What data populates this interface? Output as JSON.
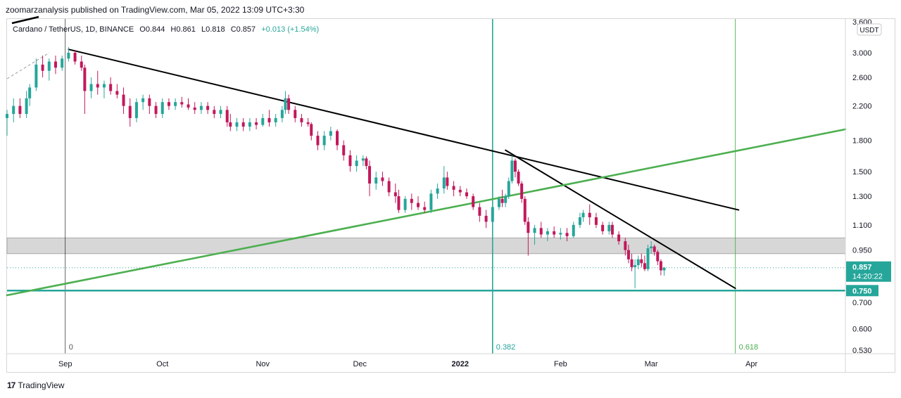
{
  "header": {
    "published_line": "zoomarzanalysis published on TradingView.com, Mar 05, 2022 13:09 UTC+3:30"
  },
  "legend": {
    "symbol": "Cardano / TetherUS, 1D, BINANCE",
    "open": "O0.844",
    "high": "H0.861",
    "low": "L0.818",
    "close": "C0.857",
    "change": "+0.013 (+1.54%)"
  },
  "price_scale": {
    "currency": "USDT",
    "top_label": "3.600",
    "current_price": "0.857",
    "countdown": "14:20:22",
    "level_label": "0.750"
  },
  "footer": {
    "brand": "TradingView",
    "logo": "17"
  },
  "colors": {
    "up": "#26a69a",
    "down": "#c2185b",
    "trendline": "#000000",
    "support_line": "#4caf50",
    "zone": "#d3d3d3",
    "horizontal": "#26a69a",
    "fib_382": "#26a69a",
    "fib_618": "#4caf50"
  },
  "chart_data": {
    "type": "candlestick",
    "symbol": "Cardano / TetherUS",
    "interval": "1D",
    "exchange": "BINANCE",
    "y_scale": "log",
    "ylim": [
      0.51,
      3.6
    ],
    "y_ticks": [
      "3.000",
      "2.600",
      "2.200",
      "1.800",
      "1.500",
      "1.300",
      "1.100",
      "0.950",
      "0.700",
      "0.600",
      "0.530"
    ],
    "x_ticks": [
      "Sep",
      "Oct",
      "Nov",
      "Dec",
      "2022",
      "Feb",
      "Mar",
      "Apr"
    ],
    "x_range": [
      "2021-08-14",
      "2022-04-30"
    ],
    "candles": [
      {
        "date": "2021-08-14",
        "o": 2.05,
        "h": 2.15,
        "l": 1.85,
        "c": 2.1
      },
      {
        "date": "2021-08-16",
        "o": 2.1,
        "h": 2.3,
        "l": 2.0,
        "c": 2.2
      },
      {
        "date": "2021-08-18",
        "o": 2.2,
        "h": 2.3,
        "l": 2.05,
        "c": 2.1
      },
      {
        "date": "2021-08-20",
        "o": 2.1,
        "h": 2.4,
        "l": 2.05,
        "c": 2.3
      },
      {
        "date": "2021-08-21",
        "o": 2.3,
        "h": 2.5,
        "l": 2.2,
        "c": 2.45
      },
      {
        "date": "2021-08-23",
        "o": 2.45,
        "h": 2.9,
        "l": 2.4,
        "c": 2.8
      },
      {
        "date": "2021-08-25",
        "o": 2.8,
        "h": 2.95,
        "l": 2.6,
        "c": 2.7
      },
      {
        "date": "2021-08-27",
        "o": 2.7,
        "h": 2.9,
        "l": 2.55,
        "c": 2.85
      },
      {
        "date": "2021-08-29",
        "o": 2.85,
        "h": 2.95,
        "l": 2.65,
        "c": 2.75
      },
      {
        "date": "2021-08-31",
        "o": 2.75,
        "h": 2.95,
        "l": 2.7,
        "c": 2.9
      },
      {
        "date": "2021-09-02",
        "o": 2.9,
        "h": 3.1,
        "l": 2.85,
        "c": 3.0
      },
      {
        "date": "2021-09-04",
        "o": 3.0,
        "h": 3.05,
        "l": 2.8,
        "c": 2.85
      },
      {
        "date": "2021-09-06",
        "o": 2.85,
        "h": 2.95,
        "l": 2.7,
        "c": 2.75
      },
      {
        "date": "2021-09-07",
        "o": 2.75,
        "h": 2.8,
        "l": 2.1,
        "c": 2.4
      },
      {
        "date": "2021-09-09",
        "o": 2.4,
        "h": 2.6,
        "l": 2.3,
        "c": 2.5
      },
      {
        "date": "2021-09-11",
        "o": 2.5,
        "h": 2.7,
        "l": 2.35,
        "c": 2.45
      },
      {
        "date": "2021-09-13",
        "o": 2.45,
        "h": 2.55,
        "l": 2.3,
        "c": 2.5
      },
      {
        "date": "2021-09-15",
        "o": 2.5,
        "h": 2.6,
        "l": 2.35,
        "c": 2.4
      },
      {
        "date": "2021-09-17",
        "o": 2.4,
        "h": 2.5,
        "l": 2.3,
        "c": 2.35
      },
      {
        "date": "2021-09-19",
        "o": 2.35,
        "h": 2.45,
        "l": 2.1,
        "c": 2.2
      },
      {
        "date": "2021-09-21",
        "o": 2.2,
        "h": 2.3,
        "l": 1.95,
        "c": 2.05
      },
      {
        "date": "2021-09-23",
        "o": 2.05,
        "h": 2.3,
        "l": 2.0,
        "c": 2.25
      },
      {
        "date": "2021-09-25",
        "o": 2.25,
        "h": 2.35,
        "l": 2.15,
        "c": 2.3
      },
      {
        "date": "2021-09-27",
        "o": 2.3,
        "h": 2.35,
        "l": 2.1,
        "c": 2.2
      },
      {
        "date": "2021-09-29",
        "o": 2.2,
        "h": 2.25,
        "l": 2.05,
        "c": 2.1
      },
      {
        "date": "2021-10-01",
        "o": 2.1,
        "h": 2.3,
        "l": 2.05,
        "c": 2.25
      },
      {
        "date": "2021-10-03",
        "o": 2.25,
        "h": 2.3,
        "l": 2.15,
        "c": 2.2
      },
      {
        "date": "2021-10-05",
        "o": 2.2,
        "h": 2.3,
        "l": 2.15,
        "c": 2.25
      },
      {
        "date": "2021-10-07",
        "o": 2.25,
        "h": 2.32,
        "l": 2.18,
        "c": 2.22
      },
      {
        "date": "2021-10-09",
        "o": 2.22,
        "h": 2.3,
        "l": 2.15,
        "c": 2.18
      },
      {
        "date": "2021-10-11",
        "o": 2.18,
        "h": 2.25,
        "l": 2.1,
        "c": 2.15
      },
      {
        "date": "2021-10-13",
        "o": 2.15,
        "h": 2.25,
        "l": 2.1,
        "c": 2.2
      },
      {
        "date": "2021-10-15",
        "o": 2.2,
        "h": 2.25,
        "l": 2.1,
        "c": 2.15
      },
      {
        "date": "2021-10-17",
        "o": 2.15,
        "h": 2.2,
        "l": 2.05,
        "c": 2.1
      },
      {
        "date": "2021-10-19",
        "o": 2.1,
        "h": 2.2,
        "l": 2.05,
        "c": 2.15
      },
      {
        "date": "2021-10-21",
        "o": 2.15,
        "h": 2.2,
        "l": 1.95,
        "c": 2.0
      },
      {
        "date": "2021-10-22",
        "o": 2.0,
        "h": 2.1,
        "l": 1.9,
        "c": 1.95
      },
      {
        "date": "2021-10-24",
        "o": 1.95,
        "h": 2.05,
        "l": 1.9,
        "c": 2.0
      },
      {
        "date": "2021-10-26",
        "o": 2.0,
        "h": 2.05,
        "l": 1.9,
        "c": 1.95
      },
      {
        "date": "2021-10-28",
        "o": 1.95,
        "h": 2.05,
        "l": 1.9,
        "c": 2.0
      },
      {
        "date": "2021-10-30",
        "o": 2.0,
        "h": 2.05,
        "l": 1.92,
        "c": 1.97
      },
      {
        "date": "2021-11-01",
        "o": 1.97,
        "h": 2.1,
        "l": 1.95,
        "c": 2.05
      },
      {
        "date": "2021-11-03",
        "o": 2.05,
        "h": 2.15,
        "l": 1.95,
        "c": 2.0
      },
      {
        "date": "2021-11-05",
        "o": 2.0,
        "h": 2.1,
        "l": 1.95,
        "c": 2.05
      },
      {
        "date": "2021-11-07",
        "o": 2.05,
        "h": 2.2,
        "l": 2.0,
        "c": 2.15
      },
      {
        "date": "2021-11-08",
        "o": 2.15,
        "h": 2.4,
        "l": 2.1,
        "c": 2.3
      },
      {
        "date": "2021-11-09",
        "o": 2.3,
        "h": 2.35,
        "l": 2.1,
        "c": 2.15
      },
      {
        "date": "2021-11-11",
        "o": 2.15,
        "h": 2.2,
        "l": 2.0,
        "c": 2.05
      },
      {
        "date": "2021-11-13",
        "o": 2.05,
        "h": 2.1,
        "l": 1.95,
        "c": 2.0
      },
      {
        "date": "2021-11-15",
        "o": 2.0,
        "h": 2.05,
        "l": 1.95,
        "c": 1.98
      },
      {
        "date": "2021-11-16",
        "o": 1.98,
        "h": 2.0,
        "l": 1.8,
        "c": 1.85
      },
      {
        "date": "2021-11-18",
        "o": 1.85,
        "h": 1.9,
        "l": 1.7,
        "c": 1.75
      },
      {
        "date": "2021-11-20",
        "o": 1.75,
        "h": 1.9,
        "l": 1.7,
        "c": 1.85
      },
      {
        "date": "2021-11-22",
        "o": 1.85,
        "h": 1.95,
        "l": 1.8,
        "c": 1.9
      },
      {
        "date": "2021-11-24",
        "o": 1.9,
        "h": 1.92,
        "l": 1.7,
        "c": 1.75
      },
      {
        "date": "2021-11-26",
        "o": 1.75,
        "h": 1.8,
        "l": 1.6,
        "c": 1.65
      },
      {
        "date": "2021-11-28",
        "o": 1.65,
        "h": 1.7,
        "l": 1.5,
        "c": 1.55
      },
      {
        "date": "2021-11-30",
        "o": 1.55,
        "h": 1.65,
        "l": 1.5,
        "c": 1.6
      },
      {
        "date": "2021-12-02",
        "o": 1.6,
        "h": 1.65,
        "l": 1.55,
        "c": 1.62
      },
      {
        "date": "2021-12-03",
        "o": 1.62,
        "h": 1.64,
        "l": 1.52,
        "c": 1.55
      },
      {
        "date": "2021-12-04",
        "o": 1.55,
        "h": 1.6,
        "l": 1.3,
        "c": 1.4
      },
      {
        "date": "2021-12-06",
        "o": 1.4,
        "h": 1.5,
        "l": 1.35,
        "c": 1.45
      },
      {
        "date": "2021-12-08",
        "o": 1.45,
        "h": 1.5,
        "l": 1.38,
        "c": 1.42
      },
      {
        "date": "2021-12-10",
        "o": 1.42,
        "h": 1.45,
        "l": 1.3,
        "c": 1.33
      },
      {
        "date": "2021-12-12",
        "o": 1.33,
        "h": 1.4,
        "l": 1.25,
        "c": 1.3
      },
      {
        "date": "2021-12-13",
        "o": 1.3,
        "h": 1.35,
        "l": 1.18,
        "c": 1.2
      },
      {
        "date": "2021-12-15",
        "o": 1.2,
        "h": 1.3,
        "l": 1.18,
        "c": 1.28
      },
      {
        "date": "2021-12-17",
        "o": 1.28,
        "h": 1.32,
        "l": 1.2,
        "c": 1.25
      },
      {
        "date": "2021-12-19",
        "o": 1.25,
        "h": 1.3,
        "l": 1.2,
        "c": 1.22
      },
      {
        "date": "2021-12-21",
        "o": 1.22,
        "h": 1.26,
        "l": 1.18,
        "c": 1.2
      },
      {
        "date": "2021-12-23",
        "o": 1.2,
        "h": 1.35,
        "l": 1.18,
        "c": 1.32
      },
      {
        "date": "2021-12-25",
        "o": 1.32,
        "h": 1.4,
        "l": 1.28,
        "c": 1.36
      },
      {
        "date": "2021-12-27",
        "o": 1.36,
        "h": 1.55,
        "l": 1.32,
        "c": 1.45
      },
      {
        "date": "2021-12-28",
        "o": 1.45,
        "h": 1.5,
        "l": 1.35,
        "c": 1.38
      },
      {
        "date": "2021-12-30",
        "o": 1.38,
        "h": 1.42,
        "l": 1.3,
        "c": 1.35
      },
      {
        "date": "2022-01-01",
        "o": 1.35,
        "h": 1.38,
        "l": 1.3,
        "c": 1.33
      },
      {
        "date": "2022-01-03",
        "o": 1.33,
        "h": 1.36,
        "l": 1.28,
        "c": 1.3
      },
      {
        "date": "2022-01-05",
        "o": 1.3,
        "h": 1.32,
        "l": 1.2,
        "c": 1.22
      },
      {
        "date": "2022-01-07",
        "o": 1.22,
        "h": 1.25,
        "l": 1.12,
        "c": 1.16
      },
      {
        "date": "2022-01-09",
        "o": 1.16,
        "h": 1.2,
        "l": 1.08,
        "c": 1.12
      },
      {
        "date": "2022-01-11",
        "o": 1.12,
        "h": 1.25,
        "l": 1.1,
        "c": 1.22
      },
      {
        "date": "2022-01-13",
        "o": 1.22,
        "h": 1.3,
        "l": 1.2,
        "c": 1.28
      },
      {
        "date": "2022-01-14",
        "o": 1.28,
        "h": 1.35,
        "l": 1.22,
        "c": 1.25
      },
      {
        "date": "2022-01-15",
        "o": 1.25,
        "h": 1.32,
        "l": 1.22,
        "c": 1.3
      },
      {
        "date": "2022-01-16",
        "o": 1.3,
        "h": 1.45,
        "l": 1.28,
        "c": 1.42
      },
      {
        "date": "2022-01-17",
        "o": 1.42,
        "h": 1.65,
        "l": 1.4,
        "c": 1.6
      },
      {
        "date": "2022-01-18",
        "o": 1.6,
        "h": 1.62,
        "l": 1.45,
        "c": 1.5
      },
      {
        "date": "2022-01-19",
        "o": 1.5,
        "h": 1.52,
        "l": 1.38,
        "c": 1.4
      },
      {
        "date": "2022-01-20",
        "o": 1.4,
        "h": 1.42,
        "l": 1.25,
        "c": 1.28
      },
      {
        "date": "2022-01-21",
        "o": 1.28,
        "h": 1.3,
        "l": 1.1,
        "c": 1.12
      },
      {
        "date": "2022-01-22",
        "o": 1.12,
        "h": 1.15,
        "l": 0.92,
        "c": 1.05
      },
      {
        "date": "2022-01-24",
        "o": 1.05,
        "h": 1.1,
        "l": 0.98,
        "c": 1.08
      },
      {
        "date": "2022-01-26",
        "o": 1.08,
        "h": 1.12,
        "l": 1.02,
        "c": 1.04
      },
      {
        "date": "2022-01-28",
        "o": 1.04,
        "h": 1.08,
        "l": 1.0,
        "c": 1.06
      },
      {
        "date": "2022-01-30",
        "o": 1.06,
        "h": 1.09,
        "l": 1.02,
        "c": 1.04
      },
      {
        "date": "2022-02-01",
        "o": 1.04,
        "h": 1.08,
        "l": 1.01,
        "c": 1.05
      },
      {
        "date": "2022-02-03",
        "o": 1.05,
        "h": 1.08,
        "l": 1.0,
        "c": 1.03
      },
      {
        "date": "2022-02-05",
        "o": 1.03,
        "h": 1.12,
        "l": 1.02,
        "c": 1.1
      },
      {
        "date": "2022-02-07",
        "o": 1.1,
        "h": 1.18,
        "l": 1.08,
        "c": 1.15
      },
      {
        "date": "2022-02-08",
        "o": 1.15,
        "h": 1.2,
        "l": 1.12,
        "c": 1.18
      },
      {
        "date": "2022-02-10",
        "o": 1.18,
        "h": 1.24,
        "l": 1.1,
        "c": 1.15
      },
      {
        "date": "2022-02-12",
        "o": 1.15,
        "h": 1.18,
        "l": 1.08,
        "c": 1.1
      },
      {
        "date": "2022-02-14",
        "o": 1.1,
        "h": 1.12,
        "l": 1.04,
        "c": 1.06
      },
      {
        "date": "2022-02-16",
        "o": 1.06,
        "h": 1.12,
        "l": 1.04,
        "c": 1.1
      },
      {
        "date": "2022-02-17",
        "o": 1.1,
        "h": 1.12,
        "l": 1.02,
        "c": 1.04
      },
      {
        "date": "2022-02-19",
        "o": 1.04,
        "h": 1.06,
        "l": 0.98,
        "c": 1.0
      },
      {
        "date": "2022-02-21",
        "o": 1.0,
        "h": 1.02,
        "l": 0.92,
        "c": 0.95
      },
      {
        "date": "2022-02-22",
        "o": 0.95,
        "h": 0.98,
        "l": 0.88,
        "c": 0.9
      },
      {
        "date": "2022-02-23",
        "o": 0.9,
        "h": 0.93,
        "l": 0.84,
        "c": 0.86
      },
      {
        "date": "2022-02-24",
        "o": 0.86,
        "h": 0.9,
        "l": 0.76,
        "c": 0.87
      },
      {
        "date": "2022-02-25",
        "o": 0.87,
        "h": 0.92,
        "l": 0.85,
        "c": 0.9
      },
      {
        "date": "2022-02-26",
        "o": 0.9,
        "h": 0.93,
        "l": 0.86,
        "c": 0.88
      },
      {
        "date": "2022-02-27",
        "o": 0.88,
        "h": 0.92,
        "l": 0.84,
        "c": 0.85
      },
      {
        "date": "2022-02-28",
        "o": 0.85,
        "h": 0.98,
        "l": 0.84,
        "c": 0.96
      },
      {
        "date": "2022-03-01",
        "o": 0.96,
        "h": 1.0,
        "l": 0.93,
        "c": 0.97
      },
      {
        "date": "2022-03-02",
        "o": 0.97,
        "h": 0.98,
        "l": 0.92,
        "c": 0.94
      },
      {
        "date": "2022-03-03",
        "o": 0.94,
        "h": 0.95,
        "l": 0.87,
        "c": 0.89
      },
      {
        "date": "2022-03-04",
        "o": 0.89,
        "h": 0.9,
        "l": 0.82,
        "c": 0.844
      },
      {
        "date": "2022-03-05",
        "o": 0.844,
        "h": 0.861,
        "l": 0.818,
        "c": 0.857
      }
    ],
    "annotations": {
      "horizontal_line": {
        "price": 0.75,
        "label": "0.750"
      },
      "zone": {
        "from": 0.93,
        "to": 1.02
      },
      "current_price_line": {
        "price": 0.857
      },
      "vertical_lines": [
        {
          "date": "2021-09-01",
          "label": "0"
        },
        {
          "date": "2022-01-11",
          "label": "0.382"
        },
        {
          "date": "2022-03-27",
          "label": "0.618"
        }
      ],
      "trendlines": [
        {
          "from": {
            "date": "2021-09-02",
            "price": 3.06
          },
          "to": {
            "date": "2022-03-28",
            "price": 1.2
          },
          "color": "#000000"
        },
        {
          "from": {
            "date": "2022-01-15",
            "price": 1.7
          },
          "to": {
            "date": "2022-03-27",
            "price": 0.76
          },
          "color": "#000000"
        },
        {
          "from": {
            "date": "2021-08-14",
            "price": 0.73
          },
          "to": {
            "date": "2022-04-30",
            "price": 1.92
          },
          "color": "#4caf50"
        }
      ]
    }
  }
}
